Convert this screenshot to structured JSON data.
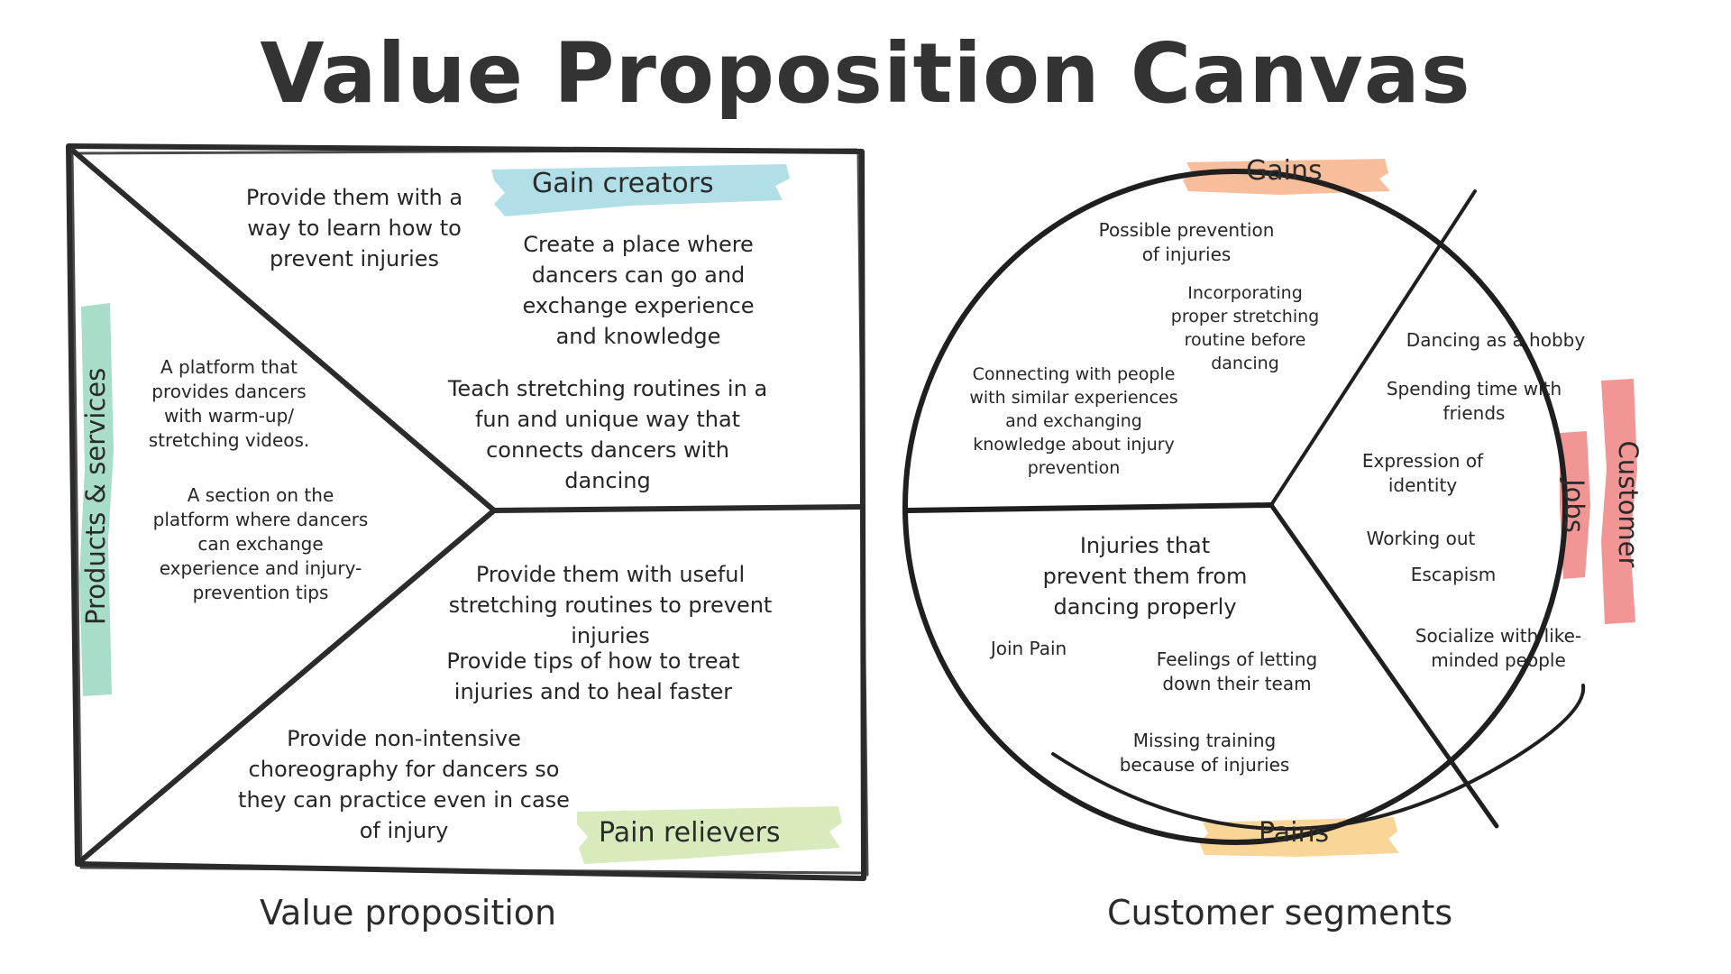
{
  "title": "Value Proposition Canvas",
  "colors": {
    "gain_creators_highlight": "#a9dbe6",
    "pain_relievers_highlight": "#d3e9b5",
    "products_services_highlight": "#9fd9c4",
    "gains_highlight": "#f7b791",
    "pains_highlight": "#f8d28d",
    "customer_jobs_highlight": "#f08a8a",
    "ink": "#262626"
  },
  "value_proposition": {
    "caption": "Value proposition",
    "gain_creators": {
      "label": "Gain creators",
      "notes": [
        "Provide them with a\nway to learn how to\nprevent injuries",
        "Create a place where\ndancers can go and\nexchange experience\nand knowledge",
        "Teach stretching routines in a\nfun and unique way that\nconnects dancers with\ndancing"
      ]
    },
    "products_services": {
      "label": "Products & services",
      "notes": [
        "A platform that\nprovides dancers\nwith warm-up/\nstretching videos.",
        "A section on the\nplatform where dancers\ncan exchange\nexperience and injury-\nprevention tips"
      ]
    },
    "pain_relievers": {
      "label": "Pain relievers",
      "notes": [
        "Provide them with useful\nstretching routines to prevent\ninjuries",
        "Provide tips of how to treat\ninjuries and  to heal faster",
        "Provide non-intensive\nchoreography for dancers so\nthey can practice even in case\nof injury"
      ]
    }
  },
  "customer_segments": {
    "caption": "Customer segments",
    "gains": {
      "label": "Gains",
      "notes": [
        "Possible prevention\nof injuries",
        "Incorporating\nproper stretching\nroutine before\ndancing",
        "Connecting with people\nwith similar experiences\nand exchanging\nknowledge about injury\nprevention"
      ]
    },
    "customer_jobs": {
      "label_line1": "Customer",
      "label_line2": "Jobs",
      "notes": [
        "Dancing as a hobby",
        "Spending time with\nfriends",
        "Expression of\nidentity",
        "Working out",
        "Escapism",
        "Socialize with like-\nminded people"
      ]
    },
    "pains": {
      "label": "Pains",
      "notes": [
        "Injuries that\nprevent them from\ndancing properly",
        "Join Pain",
        "Feelings of letting\ndown their team",
        "Missing training\nbecause of injuries"
      ]
    }
  }
}
